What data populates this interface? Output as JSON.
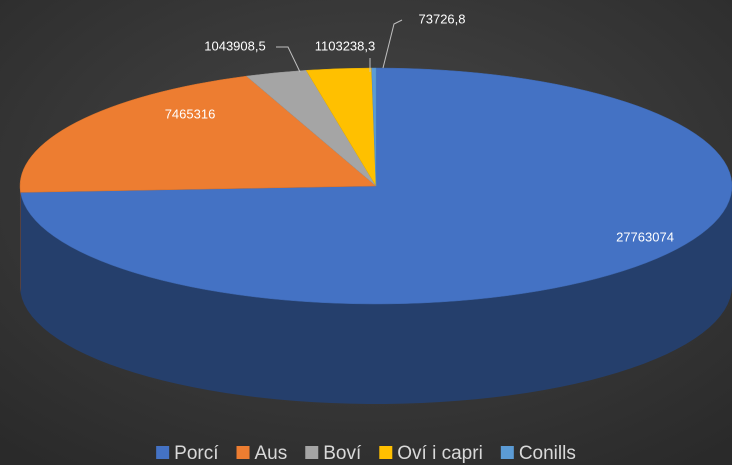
{
  "chart_data": {
    "type": "pie",
    "categories": [
      "Porcí",
      "Aus",
      "Boví",
      "Oví i capri",
      "Conills"
    ],
    "values": [
      27763074,
      7465316,
      1043908.5,
      1103238.3,
      73726.8
    ],
    "value_labels": [
      "27763074",
      "7465316",
      "1043908,5",
      "1103238,3",
      "73726,8"
    ],
    "colors": [
      "#4472c4",
      "#ed7d31",
      "#a5a5a5",
      "#ffc000",
      "#5b9bd5"
    ],
    "legend": "bottom"
  }
}
